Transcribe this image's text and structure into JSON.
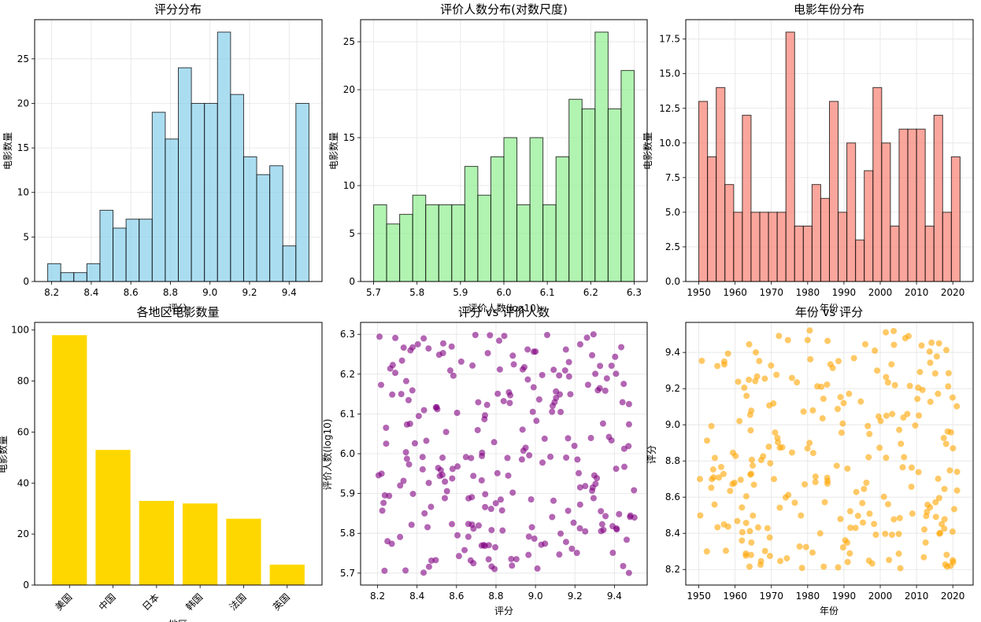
{
  "chart_data": [
    {
      "id": "p0",
      "type": "bar",
      "title": "评分分布",
      "xlabel": "评分",
      "ylabel": "电影数量",
      "bin_edges": [
        8.18,
        8.246,
        8.312,
        8.378,
        8.444,
        8.51,
        8.576,
        8.642,
        8.708,
        8.774,
        8.84,
        8.906,
        8.972,
        9.038,
        9.104,
        9.17,
        9.236,
        9.302,
        9.368,
        9.434,
        9.5
      ],
      "values": [
        2,
        1,
        1,
        2,
        8,
        6,
        7,
        7,
        19,
        16,
        24,
        20,
        20,
        28,
        21,
        14,
        12,
        13,
        4,
        20
      ],
      "xlim": [
        8.114,
        9.566
      ],
      "ylim": [
        0,
        29.4
      ],
      "xticks": [
        8.2,
        8.4,
        8.6,
        8.8,
        9.0,
        9.2,
        9.4
      ],
      "xtick_labels": [
        "8.2",
        "8.4",
        "8.6",
        "8.8",
        "9.0",
        "9.2",
        "9.4"
      ],
      "yticks": [
        0,
        5,
        10,
        15,
        20,
        25
      ],
      "ytick_labels": [
        "0",
        "5",
        "10",
        "15",
        "20",
        "25"
      ],
      "color": "#87CEEB",
      "grid": true
    },
    {
      "id": "p1",
      "type": "bar",
      "title": "评价人数分布(对数尺度)",
      "xlabel": "评价人数(log10)",
      "ylabel": "电影数量",
      "bin_edges": [
        5.7,
        5.73,
        5.76,
        5.79,
        5.82,
        5.85,
        5.88,
        5.91,
        5.94,
        5.97,
        6.0,
        6.03,
        6.06,
        6.09,
        6.12,
        6.15,
        6.18,
        6.21,
        6.24,
        6.27,
        6.3
      ],
      "values": [
        8,
        6,
        7,
        9,
        8,
        8,
        8,
        12,
        9,
        13,
        15,
        8,
        15,
        8,
        13,
        19,
        18,
        26,
        18,
        22
      ],
      "xlim": [
        5.67,
        6.33
      ],
      "ylim": [
        0,
        27.3
      ],
      "xticks": [
        5.7,
        5.8,
        5.9,
        6.0,
        6.1,
        6.2,
        6.3
      ],
      "xtick_labels": [
        "5.7",
        "5.8",
        "5.9",
        "6.0",
        "6.1",
        "6.2",
        "6.3"
      ],
      "yticks": [
        0,
        5,
        10,
        15,
        20,
        25
      ],
      "ytick_labels": [
        "0",
        "5",
        "10",
        "15",
        "20",
        "25"
      ],
      "color": "#90EE90",
      "grid": true
    },
    {
      "id": "p2",
      "type": "bar",
      "title": "电影年份分布",
      "xlabel": "年份",
      "ylabel": "电影数量",
      "bin_edges": [
        1950,
        1952.4,
        1954.8,
        1957.2,
        1959.6,
        1962,
        1964.4,
        1966.8,
        1969.2,
        1971.6,
        1974,
        1976.4,
        1978.8,
        1981.2,
        1983.6,
        1986,
        1988.4,
        1990.8,
        1993.2,
        1995.6,
        1998,
        2000.4,
        2002.8,
        2005.2,
        2007.6,
        2010,
        2012.4,
        2014.8,
        2017.2,
        2019.6,
        2022
      ],
      "values": [
        13,
        9,
        14,
        7,
        5,
        12,
        5,
        5,
        5,
        5,
        18,
        4,
        4,
        7,
        6,
        13,
        5,
        10,
        3,
        8,
        14,
        10,
        4,
        11,
        11,
        11,
        4,
        12,
        5,
        9
      ],
      "xlim": [
        1946.4,
        2025.6
      ],
      "ylim": [
        0,
        18.9
      ],
      "xticks": [
        1950,
        1960,
        1970,
        1980,
        1990,
        2000,
        2010,
        2020
      ],
      "xtick_labels": [
        "1950",
        "1960",
        "1970",
        "1980",
        "1990",
        "2000",
        "2010",
        "2020"
      ],
      "yticks": [
        0,
        2.5,
        5,
        7.5,
        10,
        12.5,
        15,
        17.5
      ],
      "ytick_labels": [
        "0.0",
        "2.5",
        "5.0",
        "7.5",
        "10.0",
        "12.5",
        "15.0",
        "17.5"
      ],
      "color": "#FA8072",
      "grid": true
    },
    {
      "id": "p3",
      "type": "bar",
      "title": "各地区电影数量",
      "xlabel": "地区",
      "ylabel": "电影数量",
      "categories": [
        "美国",
        "中国",
        "日本",
        "韩国",
        "法国",
        "英国"
      ],
      "values": [
        98,
        53,
        33,
        32,
        26,
        8
      ],
      "ylim": [
        0,
        103
      ],
      "yticks": [
        0,
        20,
        40,
        60,
        80,
        100
      ],
      "ytick_labels": [
        "0",
        "20",
        "40",
        "60",
        "80",
        "100"
      ],
      "color": "#FFD700",
      "grid": false
    },
    {
      "id": "p4",
      "type": "scatter",
      "title": "评分 vs 评价人数",
      "xlabel": "评分",
      "ylabel": "评价人数(log10)",
      "xlim": [
        8.114,
        9.566
      ],
      "ylim": [
        5.67,
        6.33
      ],
      "xticks": [
        8.2,
        8.4,
        8.6,
        8.8,
        9.0,
        9.2,
        9.4
      ],
      "xtick_labels": [
        "8.2",
        "8.4",
        "8.6",
        "8.8",
        "9.0",
        "9.2",
        "9.4"
      ],
      "yticks": [
        5.7,
        5.8,
        5.9,
        6.0,
        6.1,
        6.2,
        6.3
      ],
      "ytick_labels": [
        "5.7",
        "5.8",
        "5.9",
        "6.0",
        "6.1",
        "6.2",
        "6.3"
      ],
      "color": "#800080",
      "grid": true,
      "seed": 7,
      "n_points": 250
    },
    {
      "id": "p5",
      "type": "scatter",
      "title": "年份 vs 评分",
      "xlabel": "年份",
      "ylabel": "评分",
      "xlim": [
        1946.4,
        2025.6
      ],
      "ylim": [
        8.114,
        9.566
      ],
      "xticks": [
        1950,
        1960,
        1970,
        1980,
        1990,
        2000,
        2010,
        2020
      ],
      "xtick_labels": [
        "1950",
        "1960",
        "1970",
        "1980",
        "1990",
        "2000",
        "2010",
        "2020"
      ],
      "yticks": [
        8.2,
        8.4,
        8.6,
        8.8,
        9.0,
        9.2,
        9.4
      ],
      "ytick_labels": [
        "8.2",
        "8.4",
        "8.6",
        "8.8",
        "9.0",
        "9.2",
        "9.4"
      ],
      "color": "#FFA500",
      "grid": true,
      "seed": 13,
      "n_points": 250
    }
  ]
}
